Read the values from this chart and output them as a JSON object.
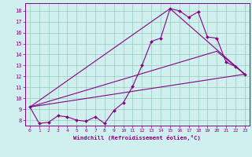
{
  "xlabel": "Windchill (Refroidissement éolien,°C)",
  "bg_color": "#cff0ee",
  "line_color": "#880088",
  "grid_color": "#99ccbb",
  "spine_color": "#880088",
  "xlim": [
    -0.5,
    23.5
  ],
  "ylim": [
    7.5,
    18.7
  ],
  "xticks": [
    0,
    1,
    2,
    3,
    4,
    5,
    6,
    7,
    8,
    9,
    10,
    11,
    12,
    13,
    14,
    15,
    16,
    17,
    18,
    19,
    20,
    21,
    22,
    23
  ],
  "yticks": [
    8,
    9,
    10,
    11,
    12,
    13,
    14,
    15,
    16,
    17,
    18
  ],
  "series_main": [
    [
      0,
      9.2
    ],
    [
      1,
      7.7
    ],
    [
      2,
      7.8
    ],
    [
      3,
      8.4
    ],
    [
      4,
      8.3
    ],
    [
      5,
      8.0
    ],
    [
      6,
      7.9
    ],
    [
      7,
      8.3
    ],
    [
      8,
      7.7
    ],
    [
      9,
      8.9
    ],
    [
      10,
      9.6
    ],
    [
      11,
      11.1
    ],
    [
      12,
      13.0
    ],
    [
      13,
      15.2
    ],
    [
      14,
      15.5
    ],
    [
      15,
      18.2
    ],
    [
      16,
      18.0
    ],
    [
      17,
      17.4
    ],
    [
      18,
      17.9
    ],
    [
      19,
      15.6
    ],
    [
      20,
      15.5
    ],
    [
      21,
      13.3
    ],
    [
      22,
      12.9
    ],
    [
      23,
      12.2
    ]
  ],
  "series_upper": [
    [
      0,
      9.2
    ],
    [
      15,
      18.2
    ],
    [
      23,
      12.2
    ]
  ],
  "series_lower": [
    [
      0,
      9.2
    ],
    [
      23,
      12.2
    ]
  ],
  "series_mid": [
    [
      0,
      9.2
    ],
    [
      20,
      14.3
    ],
    [
      23,
      12.2
    ]
  ],
  "linewidth": 0.8,
  "markersize": 2.0
}
